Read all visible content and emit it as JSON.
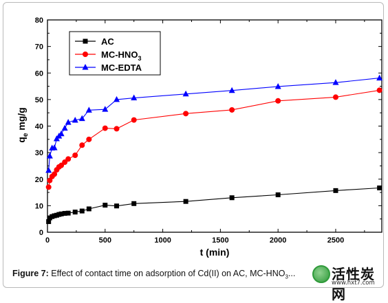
{
  "chart_data": {
    "type": "line",
    "xlabel": "t (min)",
    "ylabel": "q",
    "ylabel_sub": "e",
    "ylabel_suffix": " mg/g",
    "xlim": [
      0,
      2900
    ],
    "ylim": [
      0,
      80
    ],
    "xticks": [
      0,
      500,
      1000,
      1500,
      2000,
      2500
    ],
    "yticks": [
      0,
      10,
      20,
      30,
      40,
      50,
      60,
      70,
      80
    ],
    "grid": false,
    "legend_position": "top-left",
    "series": [
      {
        "name": "AC",
        "marker": "square",
        "color": "#000000",
        "x": [
          10,
          20,
          40,
          60,
          80,
          100,
          120,
          150,
          180,
          240,
          300,
          360,
          500,
          600,
          750,
          1200,
          1600,
          2000,
          2500,
          2880
        ],
        "y": [
          4.0,
          5.4,
          5.9,
          6.2,
          6.4,
          6.7,
          6.9,
          7.1,
          7.2,
          7.6,
          8.0,
          8.8,
          10.2,
          9.9,
          10.8,
          11.6,
          13.0,
          14.1,
          15.7,
          16.7
        ]
      },
      {
        "name": "MC-HNO",
        "name_sub": "3",
        "marker": "circle",
        "color": "#ff0000",
        "x": [
          10,
          20,
          40,
          60,
          80,
          100,
          120,
          150,
          180,
          240,
          300,
          360,
          500,
          600,
          750,
          1200,
          1600,
          2000,
          2500,
          2880
        ],
        "y": [
          17.0,
          19.5,
          21.0,
          21.9,
          23.5,
          24.6,
          25.2,
          26.4,
          27.6,
          29.0,
          32.8,
          35.0,
          39.2,
          39.0,
          42.3,
          44.7,
          46.1,
          49.5,
          50.9,
          53.5
        ]
      },
      {
        "name": "MC-EDTA",
        "marker": "triangle",
        "color": "#0000ff",
        "x": [
          10,
          20,
          40,
          60,
          80,
          100,
          120,
          150,
          180,
          240,
          300,
          360,
          500,
          600,
          750,
          1200,
          1600,
          2000,
          2500,
          2880
        ],
        "y": [
          23.3,
          28.7,
          31.7,
          31.8,
          35.2,
          36.2,
          37.1,
          39.2,
          41.4,
          42.2,
          42.8,
          46.0,
          46.3,
          50.0,
          50.6,
          52.1,
          53.4,
          54.9,
          56.4,
          58.1
        ]
      }
    ]
  },
  "caption": {
    "label": "Figure 7:",
    "text": " Effect of contact time on adsorption of Cd(II) on AC, MC-HNO",
    "sub": "3",
    "tail": "..."
  },
  "watermark": {
    "text": "活性炭网",
    "url": "www.hxt7.com"
  }
}
